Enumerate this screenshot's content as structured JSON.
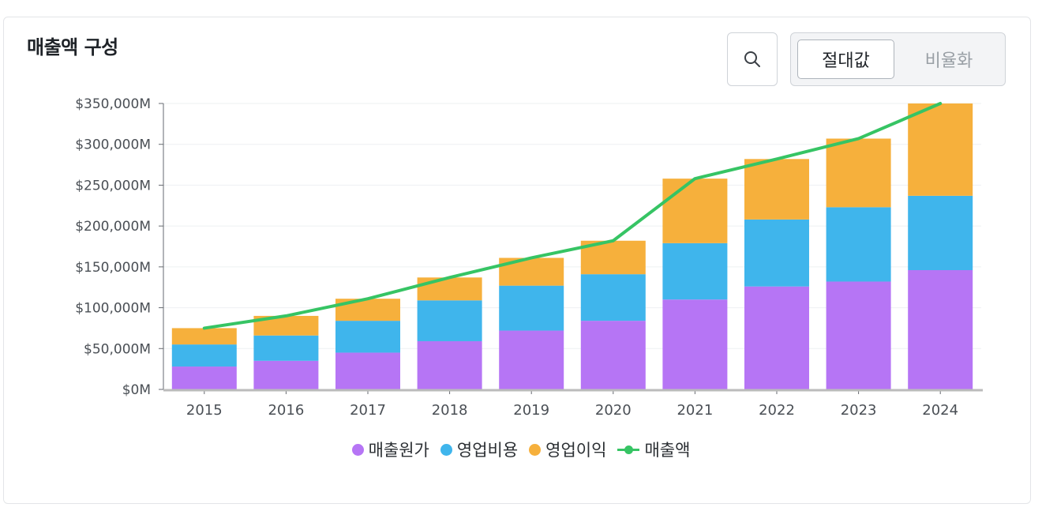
{
  "header": {
    "title": "매출액 구성",
    "search_icon": "search-icon",
    "toggle": {
      "active_label": "절대값",
      "inactive_label": "비율화"
    }
  },
  "colors": {
    "cost": "#b675f5",
    "opex": "#3fb5ec",
    "profit": "#f6b03c",
    "revenue": "#36c464",
    "grid": "#eef0f2",
    "axis": "#bbbbbb",
    "tick_text": "#4a4f55"
  },
  "legend": [
    {
      "label": "매출원가",
      "kind": "dot",
      "color": "#b675f5"
    },
    {
      "label": "영업비용",
      "kind": "dot",
      "color": "#3fb5ec"
    },
    {
      "label": "영업이익",
      "kind": "dot",
      "color": "#f6b03c"
    },
    {
      "label": "매출액",
      "kind": "line",
      "color": "#36c464"
    }
  ],
  "chart_data": {
    "type": "bar",
    "stacked": true,
    "categories": [
      "2015",
      "2016",
      "2017",
      "2018",
      "2019",
      "2020",
      "2021",
      "2022",
      "2023",
      "2024"
    ],
    "series": [
      {
        "name": "매출원가",
        "type": "bar",
        "values": [
          28000,
          35000,
          45000,
          59000,
          72000,
          84000,
          110000,
          126000,
          132000,
          146000
        ]
      },
      {
        "name": "영업비용",
        "type": "bar",
        "values": [
          27000,
          31000,
          39000,
          50000,
          55000,
          57000,
          69000,
          82000,
          91000,
          91000
        ]
      },
      {
        "name": "영업이익",
        "type": "bar",
        "values": [
          20000,
          24000,
          27000,
          28000,
          34000,
          41000,
          79000,
          74000,
          84000,
          113000
        ]
      },
      {
        "name": "매출액",
        "type": "line",
        "values": [
          75000,
          90000,
          111000,
          137000,
          161000,
          182000,
          258000,
          282000,
          307000,
          350000
        ]
      }
    ],
    "ylim": [
      0,
      350000
    ],
    "yticks": [
      0,
      50000,
      100000,
      150000,
      200000,
      250000,
      300000,
      350000
    ],
    "ytick_labels": [
      "$0M",
      "$50,000M",
      "$100,000M",
      "$150,000M",
      "$200,000M",
      "$250,000M",
      "$300,000M",
      "$350,000M"
    ],
    "grid": true,
    "legend_position": "bottom"
  }
}
